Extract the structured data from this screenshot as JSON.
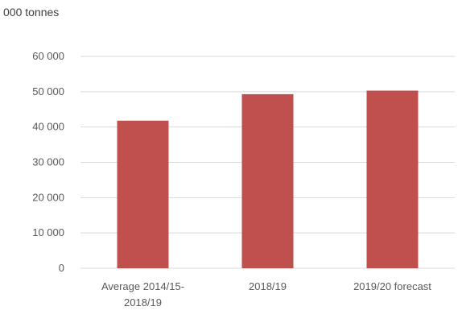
{
  "chart_data": {
    "type": "bar",
    "unit_label": "000 tonnes",
    "categories": [
      [
        "Average 2014/15-",
        "2018/19"
      ],
      [
        "2018/19"
      ],
      [
        "2019/20 forecast"
      ]
    ],
    "values": [
      41800,
      49300,
      50300
    ],
    "ylim": [
      0,
      60000
    ],
    "yticks": [
      0,
      10000,
      20000,
      30000,
      40000,
      50000,
      60000
    ],
    "ytick_labels": [
      "0",
      "10 000",
      "20 000",
      "30 000",
      "40 000",
      "50 000",
      "60 000"
    ],
    "grid": true,
    "bar_color": "#C0504D",
    "grid_color": "#D9D9D9"
  }
}
